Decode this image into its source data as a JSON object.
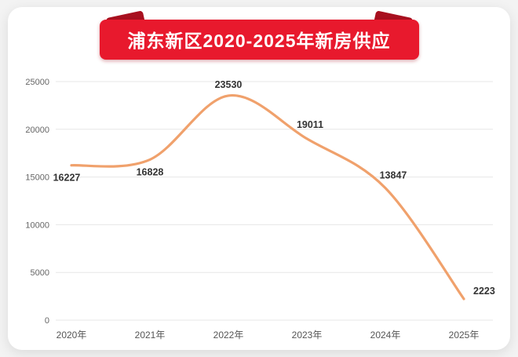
{
  "chart_data": {
    "type": "line",
    "title": "浦东新区2020-2025年新房供应",
    "categories": [
      "2020年",
      "2021年",
      "2022年",
      "2023年",
      "2024年",
      "2025年"
    ],
    "values": [
      16227,
      16828,
      23530,
      19011,
      13847,
      2223
    ],
    "y_ticks": [
      0,
      5000,
      10000,
      15000,
      20000,
      25000
    ],
    "ylim": [
      0,
      25000
    ],
    "xlabel": "",
    "ylabel": "",
    "grid": "horizontal",
    "legend": "none",
    "line_color": "#f0a16c",
    "data_label_color": "#333333",
    "axis_label_color": "#666666",
    "banner_color": "#e8192d",
    "banner_fold_color": "#a8101f"
  }
}
